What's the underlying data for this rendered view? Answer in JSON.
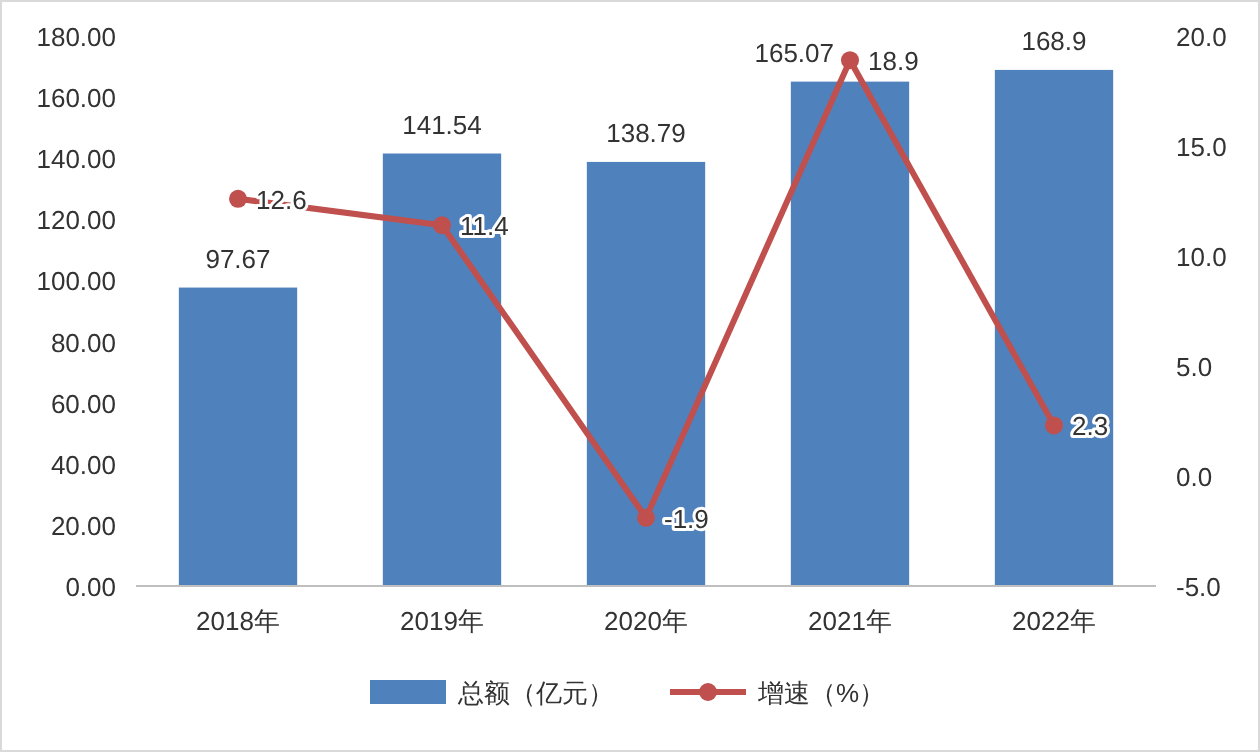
{
  "chart_data": {
    "type": "bar",
    "categories": [
      "2018年",
      "2019年",
      "2020年",
      "2021年",
      "2022年"
    ],
    "series": [
      {
        "name": "总额（亿元）",
        "color": "#4f81bd",
        "values": [
          97.67,
          141.54,
          138.79,
          165.07,
          168.9
        ]
      },
      {
        "name": "增速（%）",
        "type": "line",
        "axis": "y2",
        "color": "#c0504d",
        "values": [
          12.6,
          11.4,
          -1.9,
          18.9,
          2.3
        ]
      }
    ],
    "ylim": [
      0,
      180
    ],
    "yticks": [
      {
        "value": 0,
        "label": "0.00"
      },
      {
        "value": 20,
        "label": "20.00"
      },
      {
        "value": 40,
        "label": "40.00"
      },
      {
        "value": 60,
        "label": "60.00"
      },
      {
        "value": 80,
        "label": "80.00"
      },
      {
        "value": 100,
        "label": "100.00"
      },
      {
        "value": 120,
        "label": "120.00"
      },
      {
        "value": 140,
        "label": "140.00"
      },
      {
        "value": 160,
        "label": "160.00"
      },
      {
        "value": 180,
        "label": "180.00"
      }
    ],
    "y2lim": [
      -5,
      20
    ],
    "y2ticks": [
      {
        "value": -5,
        "label": "-5.0"
      },
      {
        "value": 0,
        "label": "0.0"
      },
      {
        "value": 5,
        "label": "5.0"
      },
      {
        "value": 10,
        "label": "10.0"
      },
      {
        "value": 15,
        "label": "15.0"
      },
      {
        "value": 20,
        "label": "20.0"
      }
    ],
    "data_labels": true,
    "grid": false,
    "legend": "bottom",
    "marker": "circle",
    "line_style": "solid"
  }
}
